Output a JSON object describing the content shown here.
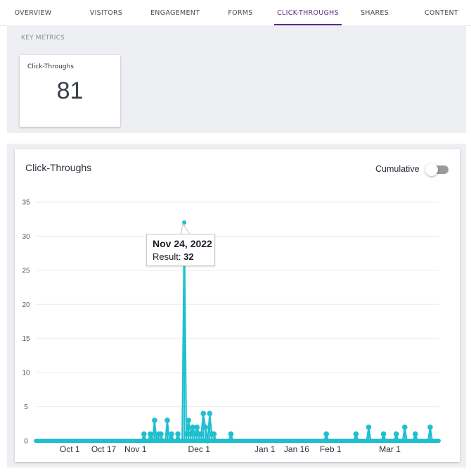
{
  "tabs": [
    {
      "label": "OVERVIEW",
      "active": false
    },
    {
      "label": "VISITORS",
      "active": false
    },
    {
      "label": "ENGAGEMENT",
      "active": false
    },
    {
      "label": "FORMS",
      "active": false
    },
    {
      "label": "CLICK-THROUGHS",
      "active": true
    },
    {
      "label": "SHARES",
      "active": false
    },
    {
      "label": "CONTENT",
      "active": false
    }
  ],
  "key_metrics": {
    "title": "KEY METRICS",
    "card": {
      "label": "Click-Throughs",
      "value": "81"
    }
  },
  "chart_panel": {
    "title": "Click-Throughs",
    "cumulative_label": "Cumulative",
    "cumulative_on": false
  },
  "tooltip": {
    "date": "Nov 24, 2022",
    "result_label": "Result:",
    "result_value": "32"
  },
  "colors": {
    "accent": "#5b2a86",
    "series": "#1fbfcf",
    "series_fill": "#a8e6ec"
  },
  "chart_data": {
    "type": "line",
    "title": "",
    "xlabel": "",
    "ylabel": "",
    "ylim": [
      0,
      35
    ],
    "yticks": [
      0,
      5,
      10,
      15,
      20,
      25,
      30,
      35
    ],
    "x_tick_labels": [
      "Oct 1",
      "Oct 17",
      "Nov 1",
      "Dec 1",
      "Jan 1",
      "Jan 16",
      "Feb 1",
      "Mar 1"
    ],
    "x_tick_dates": [
      "2022-10-01",
      "2022-10-17",
      "2022-11-01",
      "2022-12-01",
      "2023-01-01",
      "2023-01-16",
      "2023-02-01",
      "2023-03-01"
    ],
    "x_start": "2022-09-15",
    "x_end": "2023-03-24",
    "grid": true,
    "series": [
      {
        "name": "Result",
        "points": [
          {
            "date": "2022-11-05",
            "value": 1
          },
          {
            "date": "2022-11-08",
            "value": 1
          },
          {
            "date": "2022-11-10",
            "value": 3
          },
          {
            "date": "2022-11-12",
            "value": 1
          },
          {
            "date": "2022-11-13",
            "value": 1
          },
          {
            "date": "2022-11-16",
            "value": 3
          },
          {
            "date": "2022-11-18",
            "value": 1
          },
          {
            "date": "2022-11-21",
            "value": 1
          },
          {
            "date": "2022-11-24",
            "value": 32
          },
          {
            "date": "2022-11-25",
            "value": 1
          },
          {
            "date": "2022-11-26",
            "value": 3
          },
          {
            "date": "2022-11-27",
            "value": 1
          },
          {
            "date": "2022-11-28",
            "value": 2
          },
          {
            "date": "2022-11-29",
            "value": 1
          },
          {
            "date": "2022-11-30",
            "value": 2
          },
          {
            "date": "2022-12-01",
            "value": 1
          },
          {
            "date": "2022-12-02",
            "value": 1
          },
          {
            "date": "2022-12-03",
            "value": 4
          },
          {
            "date": "2022-12-04",
            "value": 2
          },
          {
            "date": "2022-12-05",
            "value": 0
          },
          {
            "date": "2022-12-06",
            "value": 4
          },
          {
            "date": "2022-12-07",
            "value": 1
          },
          {
            "date": "2022-12-08",
            "value": 1
          },
          {
            "date": "2022-12-16",
            "value": 1
          },
          {
            "date": "2023-01-30",
            "value": 1
          },
          {
            "date": "2023-02-13",
            "value": 1
          },
          {
            "date": "2023-02-19",
            "value": 2
          },
          {
            "date": "2023-02-26",
            "value": 1
          },
          {
            "date": "2023-03-04",
            "value": 1
          },
          {
            "date": "2023-03-08",
            "value": 2
          },
          {
            "date": "2023-03-13",
            "value": 1
          },
          {
            "date": "2023-03-20",
            "value": 2
          }
        ]
      }
    ],
    "highlight": {
      "date": "2022-11-24",
      "value": 32
    }
  }
}
